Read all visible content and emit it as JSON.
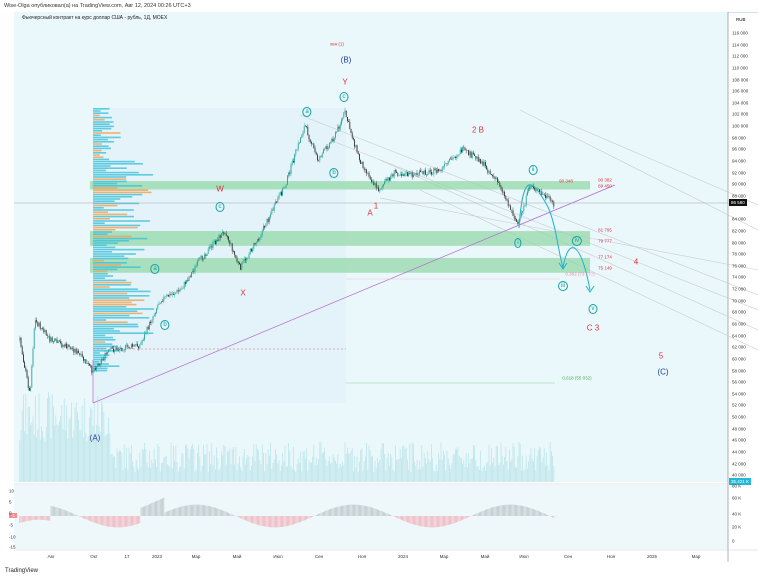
{
  "header": {
    "published": "Wise-Olga опубликовал(а) на TradingView.com, Авг 12, 2024 00:26 UTC+3",
    "symbol": "Фьючерсный контракт на курс доллар США - рубль, 1Д, MOEX",
    "currency": "RUB"
  },
  "footer": {
    "logo": "TradingView"
  },
  "chart_data": {
    "type": "candlestick",
    "title": "Фьючерсный контракт на курс доллар США - рубль, 1Д, MOEX",
    "ylim": [
      34000,
      118000
    ],
    "y_ticks": [
      "116 000",
      "114 000",
      "112 000",
      "110 000",
      "108 000",
      "106 000",
      "104 000",
      "102 000",
      "100 000",
      "98 000",
      "96 000",
      "94 000",
      "92 000",
      "90 000",
      "88 000",
      "84 000",
      "82 000",
      "80 000",
      "78 000",
      "76 000",
      "74 000",
      "72 000",
      "70 000",
      "68 000",
      "66 000",
      "64 000",
      "62 000",
      "60 000",
      "58 000",
      "56 000",
      "54 000",
      "52 000",
      "50 000",
      "48 000",
      "46 000",
      "44 000",
      "42 000",
      "40 000"
    ],
    "x_ticks": [
      "Авг",
      "Окт",
      "17",
      "2023",
      "Мар",
      "Май",
      "Июл",
      "Сен",
      "Ноя",
      "2024",
      "Мар",
      "Май",
      "Июл",
      "Сен",
      "Ноя",
      "2025",
      "Мар"
    ],
    "last_price": "86 580",
    "last_volume": "35,421 K",
    "volume_ticks": [
      "80 K",
      "60 K",
      "40 K",
      "20 K",
      "0"
    ],
    "oscillator_ticks": [
      "10",
      "5",
      "0",
      "-5",
      "-10",
      "-15"
    ],
    "oscillator_value": "-1",
    "price_path": [
      [
        "2022-06-14",
        63250
      ],
      [
        "2022-06-29",
        53800
      ],
      [
        "2022-07-06",
        66700
      ],
      [
        "2022-07-29",
        63250
      ],
      [
        "2022-09-04",
        61500
      ],
      [
        "2022-09-29",
        58000
      ],
      [
        "2022-10-25",
        61500
      ],
      [
        "2022-12-09",
        62400
      ],
      [
        "2023-01-07",
        70100
      ],
      [
        "2023-02-06",
        71800
      ],
      [
        "2023-03-07",
        77000
      ],
      [
        "2023-04-13",
        82100
      ],
      [
        "2023-05-05",
        75600
      ],
      [
        "2023-06-04",
        81300
      ],
      [
        "2023-07-11",
        89900
      ],
      [
        "2023-08-09",
        100200
      ],
      [
        "2023-08-28",
        94200
      ],
      [
        "2023-09-23",
        98500
      ],
      [
        "2023-10-07",
        102400
      ],
      [
        "2023-10-29",
        94200
      ],
      [
        "2023-11-25",
        89000
      ],
      [
        "2023-12-20",
        92100
      ],
      [
        "2024-01-11",
        91600
      ],
      [
        "2024-02-25",
        92400
      ],
      [
        "2024-03-28",
        95900
      ],
      [
        "2024-04-24",
        94200
      ],
      [
        "2024-05-23",
        89900
      ],
      [
        "2024-06-19",
        83000
      ],
      [
        "2024-07-07",
        89900
      ],
      [
        "2024-08-12",
        86580
      ]
    ],
    "zones": [
      {
        "top": 90382,
        "bottom": 89450
      },
      {
        "top": 81795,
        "bottom": 79777
      },
      {
        "top": 77174,
        "bottom": 75149
      }
    ],
    "colors": {
      "up": "#26a69a",
      "down": "#222222",
      "zone": "#8fd6a4",
      "trend": "#b36ad1",
      "projection": "#1fb3cc",
      "wave_red": "#e0323c",
      "wave_blue": "#1e3f9a",
      "wave_teal": "#12a3a3"
    },
    "annotations": [
      "хвн (1)",
      "(B)",
      "Y",
      "c",
      "a",
      "b",
      "W",
      "c",
      "a",
      "b",
      "X",
      "(A)",
      "1",
      "A",
      "2 B",
      "ii",
      "i",
      "iv",
      "iii",
      "v",
      "4",
      "C 3",
      "5",
      "(C)",
      "90 382",
      "89 450",
      "90 348",
      "81 795",
      "79 777",
      "77 174",
      "75 149",
      "0,382 (73 17?)",
      "0,618 (55 032)"
    ]
  }
}
